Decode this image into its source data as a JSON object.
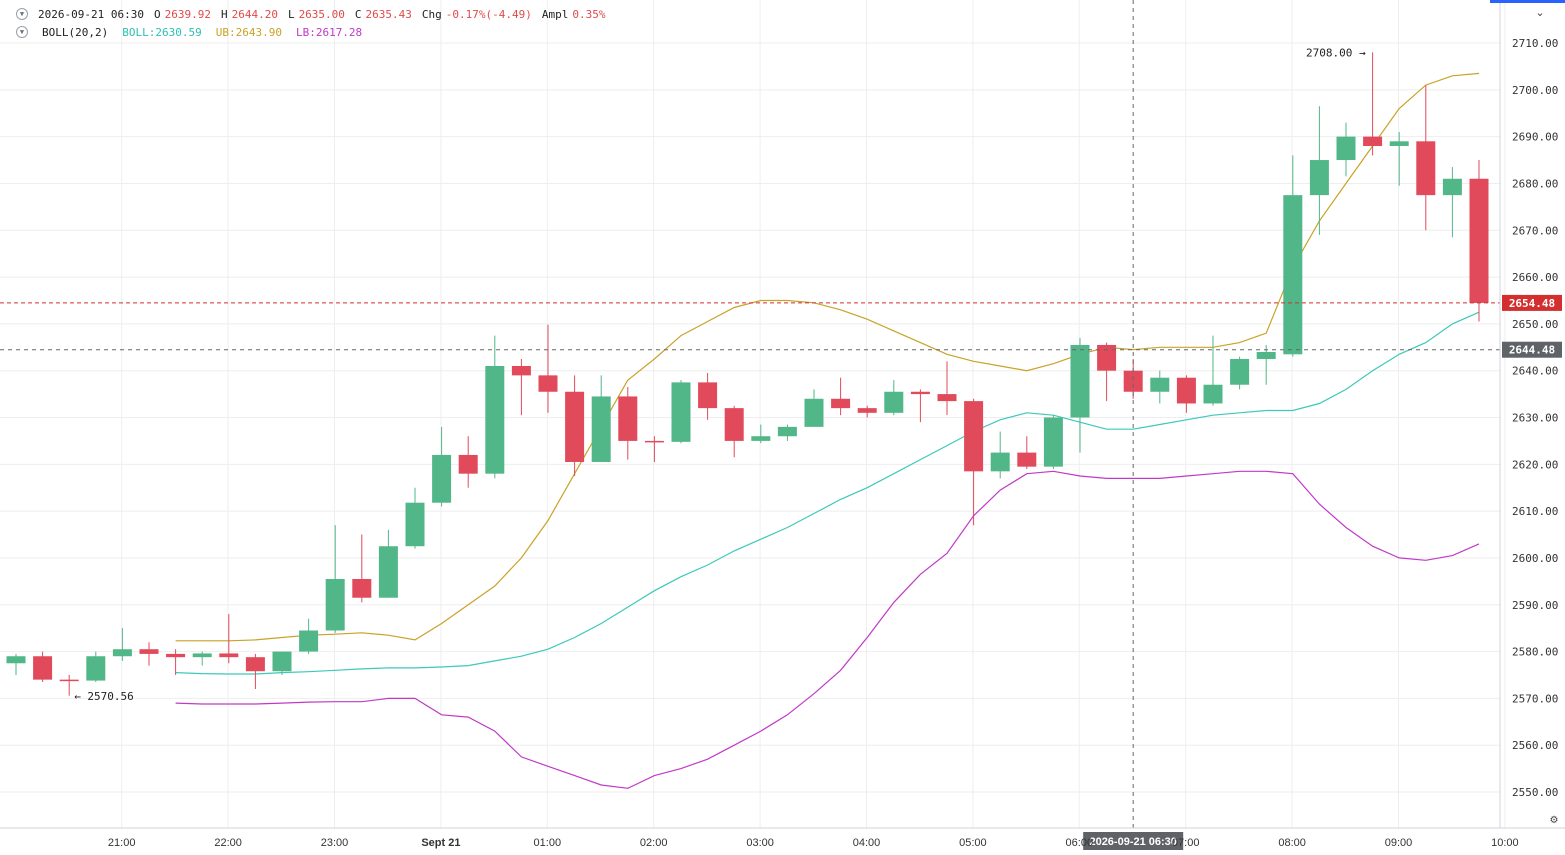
{
  "header": {
    "date": "2026-09-21 06:30",
    "open_label": "O",
    "open": "2639.92",
    "high_label": "H",
    "high": "2644.20",
    "low_label": "L",
    "low": "2635.00",
    "close_label": "C",
    "close": "2635.43",
    "chg_label": "Chg",
    "chg": "-0.17%(-4.49)",
    "ampl_label": "Ampl",
    "ampl": "0.35%",
    "toggle_icon": "chevron-down-icon"
  },
  "indicator": {
    "name": "BOLL(20,2)",
    "mid_label": "BOLL:2630.59",
    "ub_label": "UB:2643.90",
    "lb_label": "LB:2617.28"
  },
  "colors": {
    "up": "#52b788",
    "down": "#e04a5a",
    "mid": "#3cc9b8",
    "ub": "#c9a227",
    "lb": "#c03ac7",
    "last_price": "#d32f2f",
    "crosshair_label": "#5f6368"
  },
  "chart_data": {
    "type": "candlestick",
    "interval_minutes": 15,
    "first_candle_time": "2026-09-20 20:00",
    "ylim": [
      2545,
      2715
    ],
    "y_ticks": [
      "2550.00",
      "2560.00",
      "2570.00",
      "2580.00",
      "2590.00",
      "2600.00",
      "2610.00",
      "2620.00",
      "2630.00",
      "2640.00",
      "2650.00",
      "2660.00",
      "2670.00",
      "2680.00",
      "2690.00",
      "2700.00",
      "2710.00"
    ],
    "y_tick_values": [
      2550,
      2560,
      2570,
      2580,
      2590,
      2600,
      2610,
      2620,
      2630,
      2640,
      2650,
      2660,
      2670,
      2680,
      2690,
      2700,
      2710
    ],
    "x_ticks": [
      "21:00",
      "22:00",
      "23:00",
      "Sept 21",
      "01:00",
      "02:00",
      "03:00",
      "04:00",
      "05:00",
      "06:00",
      "07:00",
      "08:00",
      "09:00",
      "10:00"
    ],
    "x_tick_index": [
      4,
      8,
      12,
      16,
      20,
      24,
      28,
      32,
      36,
      40,
      44,
      48,
      52,
      56
    ],
    "candles": [
      {
        "o": 2577.5,
        "h": 2579.5,
        "l": 2575.0,
        "c": 2579.0
      },
      {
        "o": 2579.0,
        "h": 2580.0,
        "l": 2573.5,
        "c": 2574.0
      },
      {
        "o": 2574.0,
        "h": 2575.0,
        "l": 2570.56,
        "c": 2573.8
      },
      {
        "o": 2573.8,
        "h": 2580.0,
        "l": 2573.5,
        "c": 2579.0
      },
      {
        "o": 2579.0,
        "h": 2585.0,
        "l": 2578.0,
        "c": 2580.5
      },
      {
        "o": 2580.5,
        "h": 2582.0,
        "l": 2577.0,
        "c": 2579.5
      },
      {
        "o": 2579.5,
        "h": 2580.5,
        "l": 2575.0,
        "c": 2578.8
      },
      {
        "o": 2578.8,
        "h": 2580.0,
        "l": 2577.0,
        "c": 2579.6
      },
      {
        "o": 2579.6,
        "h": 2588.0,
        "l": 2577.5,
        "c": 2578.8
      },
      {
        "o": 2578.8,
        "h": 2579.5,
        "l": 2572.0,
        "c": 2575.8
      },
      {
        "o": 2575.8,
        "h": 2580.0,
        "l": 2575.0,
        "c": 2580.0
      },
      {
        "o": 2580.0,
        "h": 2587.0,
        "l": 2579.5,
        "c": 2584.5
      },
      {
        "o": 2584.5,
        "h": 2607.0,
        "l": 2584.0,
        "c": 2595.5
      },
      {
        "o": 2595.5,
        "h": 2605.0,
        "l": 2590.5,
        "c": 2591.5
      },
      {
        "o": 2591.5,
        "h": 2606.0,
        "l": 2591.5,
        "c": 2602.5
      },
      {
        "o": 2602.5,
        "h": 2615.0,
        "l": 2602.0,
        "c": 2611.8
      },
      {
        "o": 2611.8,
        "h": 2628.0,
        "l": 2611.0,
        "c": 2622.0
      },
      {
        "o": 2622.0,
        "h": 2626.0,
        "l": 2615.0,
        "c": 2618.0
      },
      {
        "o": 2618.0,
        "h": 2647.5,
        "l": 2617.0,
        "c": 2641.0
      },
      {
        "o": 2641.0,
        "h": 2642.5,
        "l": 2630.5,
        "c": 2639.0
      },
      {
        "o": 2639.0,
        "h": 2649.8,
        "l": 2631.0,
        "c": 2635.5
      },
      {
        "o": 2635.5,
        "h": 2639.0,
        "l": 2617.5,
        "c": 2620.5
      },
      {
        "o": 2620.5,
        "h": 2639.0,
        "l": 2620.5,
        "c": 2634.5
      },
      {
        "o": 2634.5,
        "h": 2636.5,
        "l": 2621.0,
        "c": 2625.0
      },
      {
        "o": 2625.0,
        "h": 2626.0,
        "l": 2620.5,
        "c": 2624.8
      },
      {
        "o": 2624.8,
        "h": 2638.0,
        "l": 2624.5,
        "c": 2637.5
      },
      {
        "o": 2637.5,
        "h": 2639.5,
        "l": 2629.5,
        "c": 2632.0
      },
      {
        "o": 2632.0,
        "h": 2632.5,
        "l": 2621.5,
        "c": 2625.0
      },
      {
        "o": 2625.0,
        "h": 2628.5,
        "l": 2624.5,
        "c": 2626.0
      },
      {
        "o": 2626.0,
        "h": 2628.5,
        "l": 2625.0,
        "c": 2628.0
      },
      {
        "o": 2628.0,
        "h": 2636.0,
        "l": 2628.0,
        "c": 2634.0
      },
      {
        "o": 2634.0,
        "h": 2638.5,
        "l": 2630.5,
        "c": 2632.0
      },
      {
        "o": 2632.0,
        "h": 2632.5,
        "l": 2630.0,
        "c": 2631.0
      },
      {
        "o": 2631.0,
        "h": 2638.0,
        "l": 2630.5,
        "c": 2635.5
      },
      {
        "o": 2635.5,
        "h": 2636.0,
        "l": 2629.0,
        "c": 2635.0
      },
      {
        "o": 2635.0,
        "h": 2642.0,
        "l": 2630.5,
        "c": 2633.5
      },
      {
        "o": 2633.5,
        "h": 2634.0,
        "l": 2607.0,
        "c": 2618.5
      },
      {
        "o": 2618.5,
        "h": 2627.0,
        "l": 2617.0,
        "c": 2622.5
      },
      {
        "o": 2622.5,
        "h": 2626.0,
        "l": 2619.0,
        "c": 2619.5
      },
      {
        "o": 2619.5,
        "h": 2630.5,
        "l": 2619.0,
        "c": 2630.0
      },
      {
        "o": 2630.0,
        "h": 2647.0,
        "l": 2622.5,
        "c": 2645.5
      },
      {
        "o": 2645.5,
        "h": 2646.0,
        "l": 2633.5,
        "c": 2640.0
      },
      {
        "o": 2640.0,
        "h": 2642.5,
        "l": 2634.0,
        "c": 2635.5
      },
      {
        "o": 2635.5,
        "h": 2640.0,
        "l": 2633.0,
        "c": 2638.5
      },
      {
        "o": 2638.5,
        "h": 2639.0,
        "l": 2631.0,
        "c": 2633.0
      },
      {
        "o": 2633.0,
        "h": 2647.5,
        "l": 2632.5,
        "c": 2637.0
      },
      {
        "o": 2637.0,
        "h": 2643.0,
        "l": 2636.0,
        "c": 2642.5
      },
      {
        "o": 2642.5,
        "h": 2645.5,
        "l": 2637.0,
        "c": 2644.0
      },
      {
        "o": 2643.5,
        "h": 2686.0,
        "l": 2643.0,
        "c": 2677.5
      },
      {
        "o": 2677.5,
        "h": 2696.5,
        "l": 2669.0,
        "c": 2685.0
      },
      {
        "o": 2685.0,
        "h": 2693.0,
        "l": 2681.5,
        "c": 2690.0
      },
      {
        "o": 2690.0,
        "h": 2708.0,
        "l": 2686.0,
        "c": 2688.0
      },
      {
        "o": 2688.0,
        "h": 2691.0,
        "l": 2679.5,
        "c": 2689.0
      },
      {
        "o": 2689.0,
        "h": 2701.0,
        "l": 2670.0,
        "c": 2677.5
      },
      {
        "o": 2677.5,
        "h": 2683.5,
        "l": 2668.5,
        "c": 2681.0
      },
      {
        "o": 2681.0,
        "h": 2685.0,
        "l": 2650.5,
        "c": 2654.48
      }
    ],
    "series": [
      {
        "key": "mid",
        "name": "BOLL",
        "values": [
          2575.5,
          2575.3,
          2575.2,
          2575.2,
          2575.5,
          2575.7,
          2576.0,
          2576.3,
          2576.5,
          2576.5,
          2576.7,
          2577.0,
          2578.0,
          2579.0,
          2580.5,
          2583.0,
          2586.0,
          2589.5,
          2593.0,
          2596.0,
          2598.5,
          2601.5,
          2604.0,
          2606.5,
          2609.5,
          2612.5,
          2615.0,
          2618.0,
          2621.0,
          2624.0,
          2627.0,
          2629.5,
          2631.0,
          2630.5,
          2629.0,
          2627.5,
          2627.5,
          2628.5,
          2629.5,
          2630.5,
          2631.0,
          2631.5,
          2631.5,
          2633.0,
          2636.0,
          2640.0,
          2643.5,
          2646.0,
          2650.0,
          2652.5
        ]
      },
      {
        "key": "ub",
        "name": "UB",
        "values": [
          2582.3,
          2582.3,
          2582.3,
          2582.5,
          2583.0,
          2583.5,
          2583.7,
          2584.0,
          2583.5,
          2582.5,
          2586.0,
          2590.0,
          2594.0,
          2600.0,
          2608.0,
          2618.0,
          2628.0,
          2638.0,
          2642.5,
          2647.5,
          2650.5,
          2653.5,
          2655.0,
          2655.0,
          2654.5,
          2653.0,
          2651.0,
          2648.5,
          2646.0,
          2643.5,
          2642.0,
          2641.0,
          2640.0,
          2641.5,
          2643.5,
          2645.0,
          2644.5,
          2645.0,
          2645.0,
          2645.0,
          2646.0,
          2648.0,
          2662.0,
          2672.0,
          2680.0,
          2688.0,
          2696.0,
          2701.0,
          2703.0,
          2703.5
        ]
      },
      {
        "key": "lb",
        "name": "LB",
        "values": [
          2569.0,
          2568.8,
          2568.8,
          2568.8,
          2569.0,
          2569.2,
          2569.3,
          2569.3,
          2570.0,
          2570.0,
          2566.5,
          2566.0,
          2563.0,
          2557.5,
          2555.5,
          2553.5,
          2551.5,
          2550.8,
          2553.5,
          2555.0,
          2557.0,
          2560.0,
          2563.0,
          2566.5,
          2571.0,
          2576.0,
          2583.0,
          2590.5,
          2596.5,
          2601.0,
          2609.0,
          2614.5,
          2618.0,
          2618.5,
          2617.5,
          2617.0,
          2617.0,
          2617.0,
          2617.5,
          2618.0,
          2618.5,
          2618.5,
          2618.0,
          2611.5,
          2606.5,
          2602.5,
          2600.0,
          2599.5,
          2600.5,
          2603.0
        ]
      }
    ],
    "band_start_index": 6,
    "high_marker": {
      "label": "2708.00",
      "value": 2708.0,
      "index": 51
    },
    "low_marker": {
      "label": "2570.56",
      "value": 2570.56,
      "index": 2
    },
    "last_price": {
      "label": "2654.48",
      "value": 2654.48
    },
    "crosshair": {
      "price_label": "2644.48",
      "price": 2644.48,
      "time_label": "2026-09-21 06:30",
      "index": 42
    }
  }
}
